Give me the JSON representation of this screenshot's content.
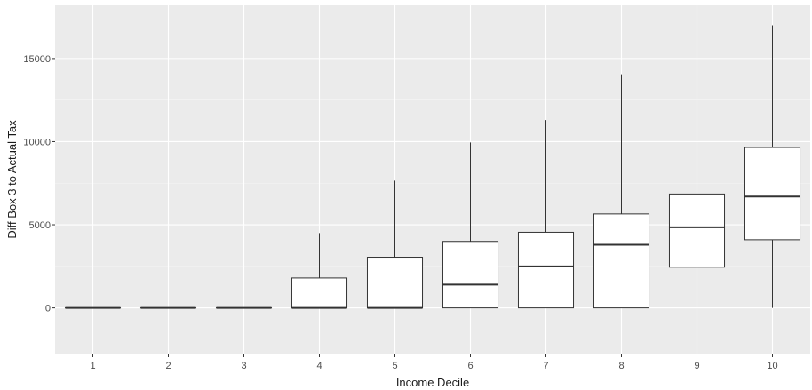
{
  "chart_data": {
    "type": "boxplot",
    "title": "",
    "xlabel": "Income Decile",
    "ylabel": "Diff Box 3 to Actual Tax",
    "ylim": [
      -2800,
      18200
    ],
    "yticks": [
      0,
      5000,
      10000,
      15000
    ],
    "grid": true,
    "background": "#ebebeb",
    "categories": [
      "1",
      "2",
      "3",
      "4",
      "5",
      "6",
      "7",
      "8",
      "9",
      "10"
    ],
    "boxes": [
      {
        "category": "1",
        "min": 0,
        "q1": 0,
        "median": 0,
        "q3": 0,
        "max": 0
      },
      {
        "category": "2",
        "min": 0,
        "q1": 0,
        "median": 0,
        "q3": 0,
        "max": 0
      },
      {
        "category": "3",
        "min": 0,
        "q1": 0,
        "median": 0,
        "q3": 0,
        "max": 0
      },
      {
        "category": "4",
        "min": 0,
        "q1": 0,
        "median": 0,
        "q3": 1800,
        "max": 4500
      },
      {
        "category": "5",
        "min": 0,
        "q1": 0,
        "median": 0,
        "q3": 3050,
        "max": 7650
      },
      {
        "category": "6",
        "min": 0,
        "q1": 0,
        "median": 1400,
        "q3": 4000,
        "max": 9950
      },
      {
        "category": "7",
        "min": 0,
        "q1": 0,
        "median": 2500,
        "q3": 4550,
        "max": 11300
      },
      {
        "category": "8",
        "min": 0,
        "q1": 0,
        "median": 3800,
        "q3": 5650,
        "max": 14050
      },
      {
        "category": "9",
        "min": 0,
        "q1": 2450,
        "median": 4850,
        "q3": 6850,
        "max": 13450
      },
      {
        "category": "10",
        "min": 0,
        "q1": 4100,
        "median": 6700,
        "q3": 9650,
        "max": 17000
      }
    ]
  }
}
